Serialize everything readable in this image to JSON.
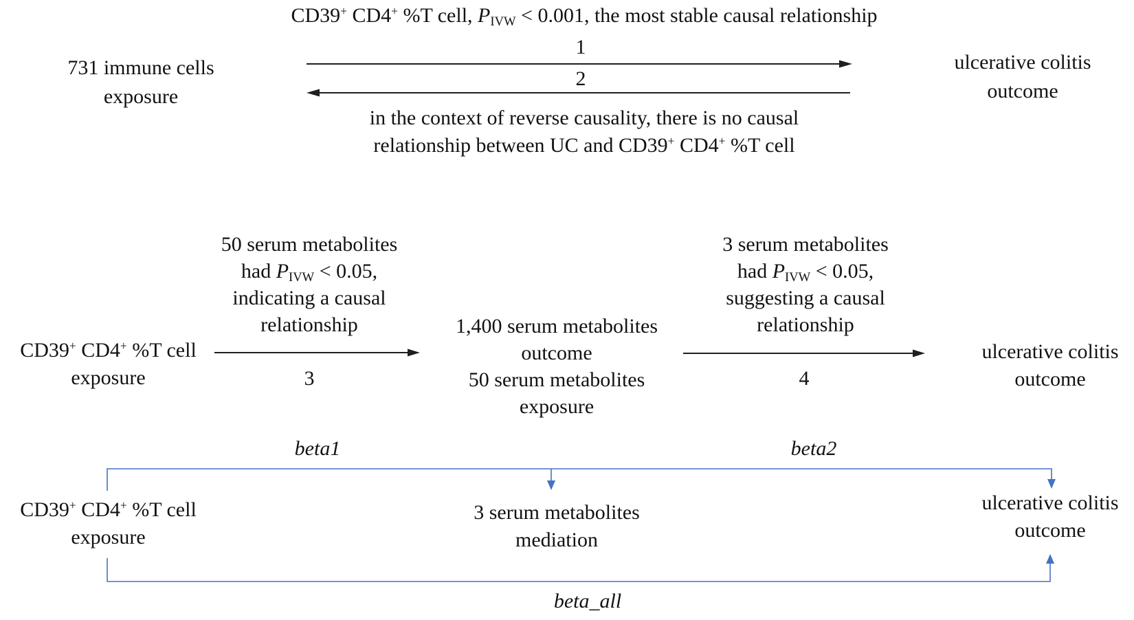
{
  "colors": {
    "line_black": "#1f1f1f",
    "line_blue": "#4472c4",
    "text": "#121212"
  },
  "title_rich": [
    {
      "t": "CD39"
    },
    {
      "sup": "+"
    },
    {
      "t": " CD4"
    },
    {
      "sup": "+"
    },
    {
      "t": " %T cell, "
    },
    {
      "i": "P"
    },
    {
      "sub": "IVW"
    },
    {
      "t": " < 0.001, the most stable causal relationship"
    }
  ],
  "section1": {
    "exposure_node": {
      "line1": "731 immune cells",
      "line2": "exposure"
    },
    "outcome_node": {
      "line1": "ulcerative colitis",
      "line2": "outcome"
    },
    "arrow1_label": "1",
    "arrow2_label": "2",
    "reverse_note": {
      "line1": "in the context of reverse causality, there is no causal",
      "line2_rich": [
        {
          "t": "relationship between UC and CD39"
        },
        {
          "sup": "+"
        },
        {
          "t": " CD4"
        },
        {
          "sup": "+"
        },
        {
          "t": " %T cell"
        }
      ]
    }
  },
  "section2": {
    "annotation_left": {
      "line1": "50 serum metabolites",
      "line2_rich": [
        {
          "t": "had "
        },
        {
          "i": "P"
        },
        {
          "sub": "IVW"
        },
        {
          "t": " < 0.05,"
        }
      ],
      "line3": "indicating a causal",
      "line4": "relationship"
    },
    "exposure_node": {
      "line1_rich": [
        {
          "t": "CD39"
        },
        {
          "sup": "+"
        },
        {
          "t": " CD4"
        },
        {
          "sup": "+"
        },
        {
          "t": " %T cell"
        }
      ],
      "line2": "exposure"
    },
    "arrow3_label": "3",
    "metabolites_node": {
      "line1": "1,400 serum metabolites",
      "line2": "outcome",
      "line3": "50 serum metabolites",
      "line4": "exposure"
    },
    "annotation_right": {
      "line1": "3 serum metabolites",
      "line2_rich": [
        {
          "t": "had "
        },
        {
          "i": "P"
        },
        {
          "sub": "IVW"
        },
        {
          "t": " < 0.05,"
        }
      ],
      "line3": "suggesting a causal",
      "line4": "relationship"
    },
    "arrow4_label": "4",
    "outcome_node": {
      "line1": "ulcerative colitis",
      "line2": "outcome"
    }
  },
  "section3": {
    "beta1_label": "beta1",
    "beta2_label": "beta2",
    "beta_all_label": "beta_all",
    "exposure_node": {
      "line1_rich": [
        {
          "t": "CD39"
        },
        {
          "sup": "+"
        },
        {
          "t": " CD4"
        },
        {
          "sup": "+"
        },
        {
          "t": " %T cell"
        }
      ],
      "line2": "exposure"
    },
    "mediation_node": {
      "line1": "3 serum metabolites",
      "line2": "mediation"
    },
    "outcome_node": {
      "line1": "ulcerative colitis",
      "line2": "outcome"
    }
  }
}
